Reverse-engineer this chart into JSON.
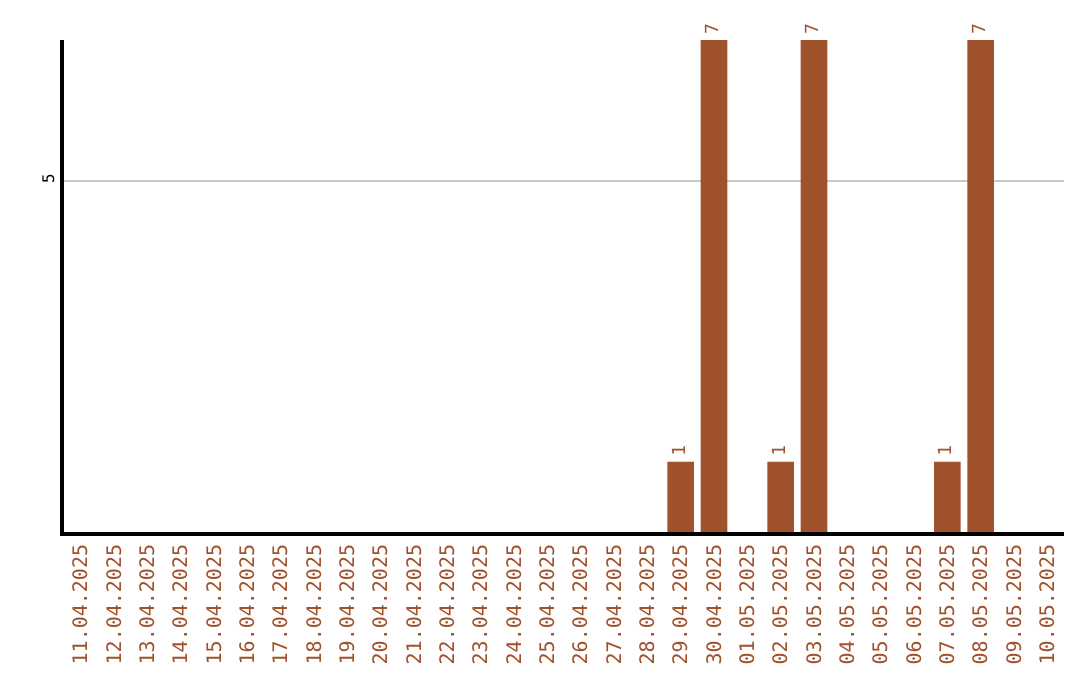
{
  "chart_data": {
    "type": "bar",
    "categories": [
      "11.04.2025",
      "12.04.2025",
      "13.04.2025",
      "14.04.2025",
      "15.04.2025",
      "16.04.2025",
      "17.04.2025",
      "18.04.2025",
      "19.04.2025",
      "20.04.2025",
      "21.04.2025",
      "22.04.2025",
      "23.04.2025",
      "24.04.2025",
      "25.04.2025",
      "26.04.2025",
      "27.04.2025",
      "28.04.2025",
      "29.04.2025",
      "30.04.2025",
      "01.05.2025",
      "02.05.2025",
      "03.05.2025",
      "04.05.2025",
      "05.05.2025",
      "06.05.2025",
      "07.05.2025",
      "08.05.2025",
      "09.05.2025",
      "10.05.2025"
    ],
    "values": [
      null,
      null,
      null,
      null,
      null,
      null,
      null,
      null,
      null,
      null,
      null,
      null,
      null,
      null,
      null,
      null,
      null,
      null,
      1,
      7,
      null,
      1,
      7,
      null,
      null,
      null,
      1,
      7,
      null,
      null
    ],
    "value_labels": [
      null,
      null,
      null,
      null,
      null,
      null,
      null,
      null,
      null,
      null,
      null,
      null,
      null,
      null,
      null,
      null,
      null,
      null,
      "1",
      "7",
      null,
      "1",
      "7",
      null,
      null,
      null,
      "1",
      "7",
      null,
      null
    ],
    "color": "#a0522d",
    "ylim": [
      0,
      7
    ],
    "yticks": [
      5
    ],
    "grid": "y",
    "legend": false
  }
}
